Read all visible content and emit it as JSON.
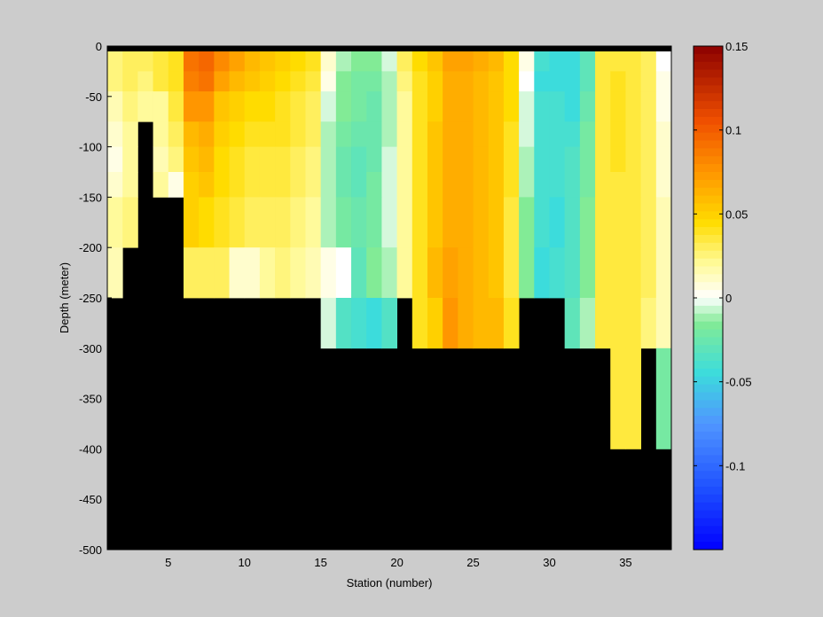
{
  "chart_data": {
    "type": "heatmap",
    "title": "",
    "xlabel": "Station (number)",
    "ylabel": "Depth (meter)",
    "xlim": [
      1,
      38
    ],
    "ylim": [
      -500,
      0
    ],
    "x_ticks": [
      5,
      10,
      15,
      20,
      25,
      30,
      35
    ],
    "y_ticks": [
      0,
      -50,
      -100,
      -150,
      -200,
      -250,
      -300,
      -350,
      -400,
      -450,
      -500
    ],
    "grid": false,
    "colorbar": {
      "placement": "right",
      "range": [
        -0.15,
        0.15
      ],
      "ticks": [
        0.15,
        0.1,
        0.05,
        0,
        -0.05,
        -0.1
      ],
      "tick_labels": [
        "0.15",
        "0.1",
        "0.05",
        "0",
        "-0.05",
        "-0.1"
      ]
    },
    "colors": {
      "land_mask": "#000000",
      "background": "#cccccc"
    },
    "stations": [
      1,
      2,
      3,
      4,
      5,
      6,
      7,
      8,
      9,
      10,
      11,
      12,
      13,
      14,
      15,
      16,
      17,
      18,
      19,
      20,
      21,
      22,
      23,
      24,
      25,
      26,
      27,
      28,
      29,
      30,
      31,
      32,
      33,
      34,
      35,
      36,
      37
    ],
    "depth_rows": [
      {
        "top": 0,
        "bottom": -5
      },
      {
        "top": -5,
        "bottom": -25
      },
      {
        "top": -25,
        "bottom": -45
      },
      {
        "top": -45,
        "bottom": -75
      },
      {
        "top": -75,
        "bottom": -100
      },
      {
        "top": -100,
        "bottom": -125
      },
      {
        "top": -125,
        "bottom": -150
      },
      {
        "top": -150,
        "bottom": -200
      },
      {
        "top": -200,
        "bottom": -250
      },
      {
        "top": -250,
        "bottom": -300
      },
      {
        "top": -300,
        "bottom": -400
      },
      {
        "top": -400,
        "bottom": -500
      }
    ],
    "bottom_depth": [
      250,
      200,
      200,
      75,
      150,
      150,
      250,
      250,
      250,
      250,
      250,
      250,
      250,
      250,
      250,
      300,
      300,
      300,
      300,
      300,
      250,
      300,
      300,
      300,
      300,
      300,
      300,
      300,
      250,
      250,
      250,
      300,
      300,
      300,
      400,
      400,
      300,
      400
    ],
    "values": [
      [
        null,
        null,
        null,
        null,
        null,
        null,
        null,
        null,
        null,
        null,
        null,
        null,
        null,
        null,
        null,
        null,
        null,
        null,
        null,
        null,
        null,
        null,
        null,
        null,
        null,
        null,
        null,
        null,
        null,
        null,
        null,
        null,
        null,
        null,
        null,
        null,
        null
      ],
      [
        0.025,
        0.03,
        0.03,
        0.035,
        0.04,
        0.09,
        0.095,
        0.08,
        0.07,
        0.06,
        0.055,
        0.05,
        0.045,
        0.04,
        0.01,
        -0.01,
        -0.015,
        -0.015,
        -0.005,
        0.03,
        0.045,
        0.055,
        0.07,
        0.07,
        0.065,
        0.06,
        0.045,
        0.005,
        -0.04,
        -0.045,
        -0.045,
        -0.03,
        0.035,
        0.035,
        0.035,
        0.03,
        0.0
      ],
      [
        0.025,
        0.03,
        0.025,
        0.035,
        0.04,
        0.085,
        0.09,
        0.07,
        0.06,
        0.055,
        0.05,
        0.045,
        0.04,
        0.035,
        0.005,
        -0.015,
        -0.02,
        -0.02,
        -0.01,
        0.025,
        0.04,
        0.05,
        0.065,
        0.065,
        0.06,
        0.055,
        0.045,
        0.0,
        -0.045,
        -0.045,
        -0.045,
        -0.03,
        0.035,
        0.04,
        0.035,
        0.03,
        0.005
      ],
      [
        0.015,
        0.025,
        0.02,
        0.02,
        0.035,
        0.075,
        0.075,
        0.055,
        0.05,
        0.045,
        0.045,
        0.04,
        0.035,
        0.03,
        -0.005,
        -0.015,
        -0.02,
        -0.025,
        -0.01,
        0.02,
        0.04,
        0.05,
        0.065,
        0.065,
        0.06,
        0.055,
        0.045,
        -0.005,
        -0.04,
        -0.04,
        -0.045,
        -0.025,
        0.035,
        0.04,
        0.035,
        0.03,
        0.005
      ],
      [
        0.01,
        0.02,
        null,
        0.02,
        0.03,
        0.06,
        0.065,
        0.05,
        0.045,
        0.04,
        0.04,
        0.04,
        0.035,
        0.03,
        -0.01,
        -0.02,
        -0.025,
        -0.025,
        -0.01,
        0.02,
        0.04,
        0.055,
        0.065,
        0.065,
        0.06,
        0.055,
        0.04,
        -0.005,
        -0.04,
        -0.04,
        -0.04,
        -0.02,
        0.035,
        0.04,
        0.035,
        0.03,
        0.01
      ],
      [
        0.005,
        0.02,
        null,
        0.015,
        0.025,
        0.055,
        0.06,
        0.045,
        0.04,
        0.035,
        0.035,
        0.035,
        0.03,
        0.025,
        -0.01,
        -0.025,
        -0.03,
        -0.025,
        -0.005,
        0.02,
        0.04,
        0.055,
        0.065,
        0.065,
        0.06,
        0.055,
        0.04,
        -0.01,
        -0.04,
        -0.04,
        -0.035,
        -0.02,
        0.035,
        0.04,
        0.035,
        0.03,
        0.01
      ],
      [
        0.01,
        0.02,
        null,
        0.02,
        0.005,
        0.05,
        0.055,
        0.045,
        0.04,
        0.035,
        0.035,
        0.035,
        0.03,
        0.025,
        -0.01,
        -0.025,
        -0.03,
        -0.02,
        -0.005,
        0.02,
        0.04,
        0.055,
        0.065,
        0.065,
        0.06,
        0.055,
        0.04,
        -0.01,
        -0.04,
        -0.04,
        -0.035,
        -0.02,
        0.035,
        0.035,
        0.035,
        0.03,
        0.01
      ],
      [
        0.02,
        0.025,
        null,
        null,
        null,
        0.05,
        0.045,
        0.04,
        0.035,
        0.03,
        0.03,
        0.03,
        0.025,
        0.02,
        -0.01,
        -0.02,
        -0.025,
        -0.02,
        -0.005,
        0.02,
        0.04,
        0.055,
        0.065,
        0.065,
        0.06,
        0.055,
        0.035,
        -0.015,
        -0.04,
        -0.045,
        -0.035,
        -0.015,
        0.035,
        0.035,
        0.035,
        0.03,
        0.015
      ],
      [
        0.015,
        null,
        null,
        null,
        null,
        0.03,
        0.03,
        0.03,
        0.01,
        0.01,
        0.02,
        0.025,
        0.02,
        0.015,
        0.005,
        0.0,
        -0.03,
        -0.015,
        -0.01,
        0.02,
        0.04,
        0.06,
        0.07,
        0.065,
        0.06,
        0.055,
        0.035,
        -0.015,
        -0.045,
        -0.04,
        -0.035,
        -0.015,
        0.035,
        0.035,
        0.035,
        0.03,
        0.015
      ],
      [
        null,
        null,
        null,
        null,
        null,
        null,
        null,
        null,
        null,
        null,
        null,
        null,
        null,
        null,
        -0.005,
        -0.035,
        -0.04,
        -0.045,
        -0.035,
        null,
        0.04,
        0.05,
        0.075,
        0.065,
        0.06,
        0.06,
        0.04,
        null,
        null,
        null,
        -0.03,
        -0.01,
        0.035,
        0.035,
        0.035,
        0.025,
        0.015
      ],
      [
        null,
        null,
        null,
        null,
        null,
        null,
        null,
        null,
        null,
        null,
        null,
        null,
        null,
        null,
        null,
        null,
        null,
        null,
        null,
        null,
        null,
        null,
        null,
        null,
        null,
        null,
        null,
        null,
        null,
        null,
        null,
        null,
        null,
        0.035,
        0.035,
        null,
        -0.02
      ],
      [
        null,
        null,
        null,
        null,
        null,
        null,
        null,
        null,
        null,
        null,
        null,
        null,
        null,
        null,
        null,
        null,
        null,
        null,
        null,
        null,
        null,
        null,
        null,
        null,
        null,
        null,
        null,
        null,
        null,
        null,
        null,
        null,
        null,
        null,
        null,
        null,
        null
      ]
    ]
  }
}
